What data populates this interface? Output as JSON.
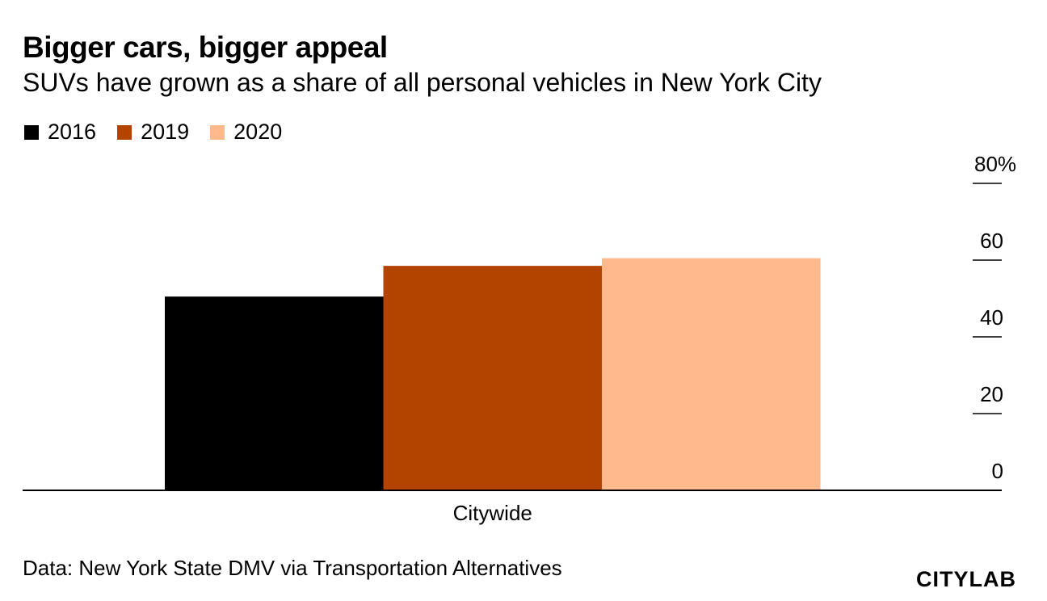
{
  "chart_data": {
    "type": "bar",
    "title": "Bigger cars, bigger appeal",
    "subtitle": "SUVs have grown as a share of all personal vehicles in New York City",
    "categories": [
      "Citywide"
    ],
    "series": [
      {
        "name": "2016",
        "values": [
          50.5
        ],
        "color": "#000000"
      },
      {
        "name": "2019",
        "values": [
          58.5
        ],
        "color": "#b34400"
      },
      {
        "name": "2020",
        "values": [
          60.5
        ],
        "color": "#ffb98c"
      }
    ],
    "xlabel": "",
    "ylabel": "",
    "ylim": [
      0,
      80
    ],
    "yticks": [
      {
        "value": 0,
        "label": "0"
      },
      {
        "value": 20,
        "label": "20"
      },
      {
        "value": 40,
        "label": "40"
      },
      {
        "value": 60,
        "label": "60"
      },
      {
        "value": 80,
        "label": "80%"
      }
    ],
    "axis_side": "right",
    "legend_position": "top-left",
    "source": "Data: New York State DMV via Transportation Alternatives",
    "brand": "CITYLAB"
  }
}
